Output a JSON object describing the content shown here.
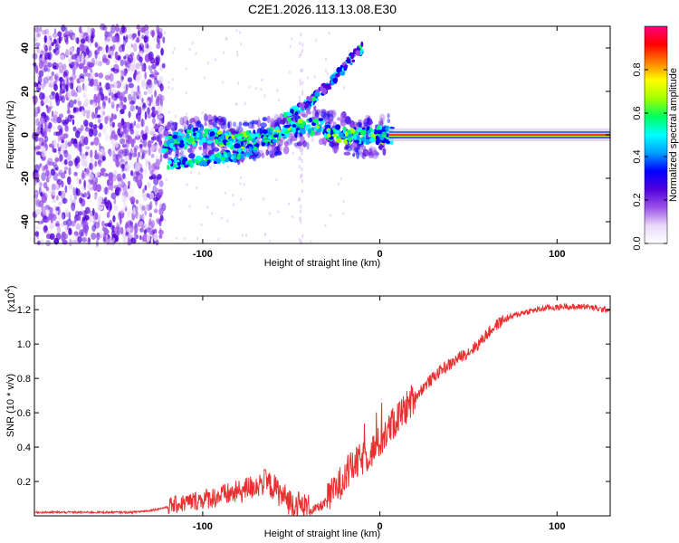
{
  "title": "C2E1.2026.113.13.08.E30",
  "chart_data": [
    {
      "type": "heatmap",
      "name": "spectrogram",
      "xlabel": "Height of straight line (km)",
      "ylabel": "Frequency (Hz)",
      "xlim": [
        -195,
        130
      ],
      "ylim": [
        -50,
        50
      ],
      "xticks": [
        -100,
        0,
        100
      ],
      "xtick_labels": [
        "-100",
        "0",
        "100"
      ],
      "yticks": [
        -40,
        -20,
        0,
        20,
        40
      ],
      "ytick_labels": [
        "-40",
        "-20",
        "0",
        "20",
        "40"
      ],
      "colorbar": {
        "label": "Normalized spectral amplitude",
        "range": [
          0,
          1
        ],
        "ticks": [
          0.0,
          0.2,
          0.4,
          0.6,
          0.8
        ],
        "tick_labels": [
          "0.0",
          "0.2",
          "0.4",
          "0.6",
          "0.8"
        ],
        "colors": [
          "#ffffff",
          "#e8d8f8",
          "#9a50e8",
          "#5000dc",
          "#0000ff",
          "#00a0ff",
          "#00ffff",
          "#00ff60",
          "#a0ff00",
          "#ffff00",
          "#ff8000",
          "#ff0000",
          "#ff0080"
        ]
      },
      "features": {
        "noise_region_x": [
          -195,
          -122
        ],
        "signal_band": [
          {
            "x": -122,
            "y": -4
          },
          {
            "x": -100,
            "y": 0
          },
          {
            "x": -80,
            "y": -3
          },
          {
            "x": -60,
            "y": -1
          },
          {
            "x": -45,
            "y": 4
          },
          {
            "x": -35,
            "y": 4
          },
          {
            "x": -25,
            "y": 1
          },
          {
            "x": -10,
            "y": -1
          },
          {
            "x": 0,
            "y": 0
          },
          {
            "x": 130,
            "y": 0
          }
        ],
        "upper_branch": [
          {
            "x": -55,
            "y": 7
          },
          {
            "x": -40,
            "y": 15
          },
          {
            "x": -30,
            "y": 22
          },
          {
            "x": -10,
            "y": 40
          }
        ],
        "lower_branch": [
          {
            "x": -120,
            "y": -14
          },
          {
            "x": -100,
            "y": -12
          },
          {
            "x": -80,
            "y": -9
          },
          {
            "x": -70,
            "y": -8
          }
        ]
      }
    },
    {
      "type": "line",
      "name": "snr",
      "xlabel": "Height of straight line (km)",
      "ylabel": "SNR (10 * v/v)",
      "yscale_label": "(x10",
      "yscale_exp": "4",
      "yscale_close": ")",
      "xlim": [
        -195,
        130
      ],
      "ylim": [
        0,
        1.28
      ],
      "xticks": [
        -100,
        0,
        100
      ],
      "xtick_labels": [
        "-100",
        "0",
        "100"
      ],
      "yticks": [
        0.2,
        0.4,
        0.6,
        0.8,
        1.0,
        1.2
      ],
      "ytick_labels": [
        "0.2",
        "0.4",
        "0.6",
        "0.8",
        "1.0",
        "1.2"
      ],
      "color": "#e83030",
      "series": [
        {
          "name": "SNR",
          "x": [
            -195,
            -180,
            -160,
            -140,
            -130,
            -120,
            -110,
            -100,
            -90,
            -80,
            -75,
            -70,
            -65,
            -60,
            -55,
            -50,
            -45,
            -40,
            -35,
            -30,
            -25,
            -20,
            -15,
            -10,
            -5,
            0,
            5,
            10,
            15,
            20,
            25,
            30,
            35,
            40,
            45,
            50,
            55,
            60,
            65,
            70,
            75,
            80,
            85,
            90,
            95,
            100,
            105,
            110,
            115,
            120,
            125,
            130
          ],
          "y": [
            0.02,
            0.02,
            0.02,
            0.02,
            0.03,
            0.05,
            0.07,
            0.09,
            0.11,
            0.13,
            0.15,
            0.17,
            0.19,
            0.16,
            0.11,
            0.07,
            0.05,
            0.03,
            0.04,
            0.08,
            0.14,
            0.22,
            0.28,
            0.32,
            0.36,
            0.42,
            0.49,
            0.56,
            0.62,
            0.69,
            0.75,
            0.8,
            0.85,
            0.88,
            0.92,
            0.95,
            0.99,
            1.05,
            1.1,
            1.14,
            1.16,
            1.18,
            1.19,
            1.2,
            1.21,
            1.21,
            1.22,
            1.21,
            1.22,
            1.21,
            1.2,
            1.2
          ]
        }
      ]
    }
  ]
}
